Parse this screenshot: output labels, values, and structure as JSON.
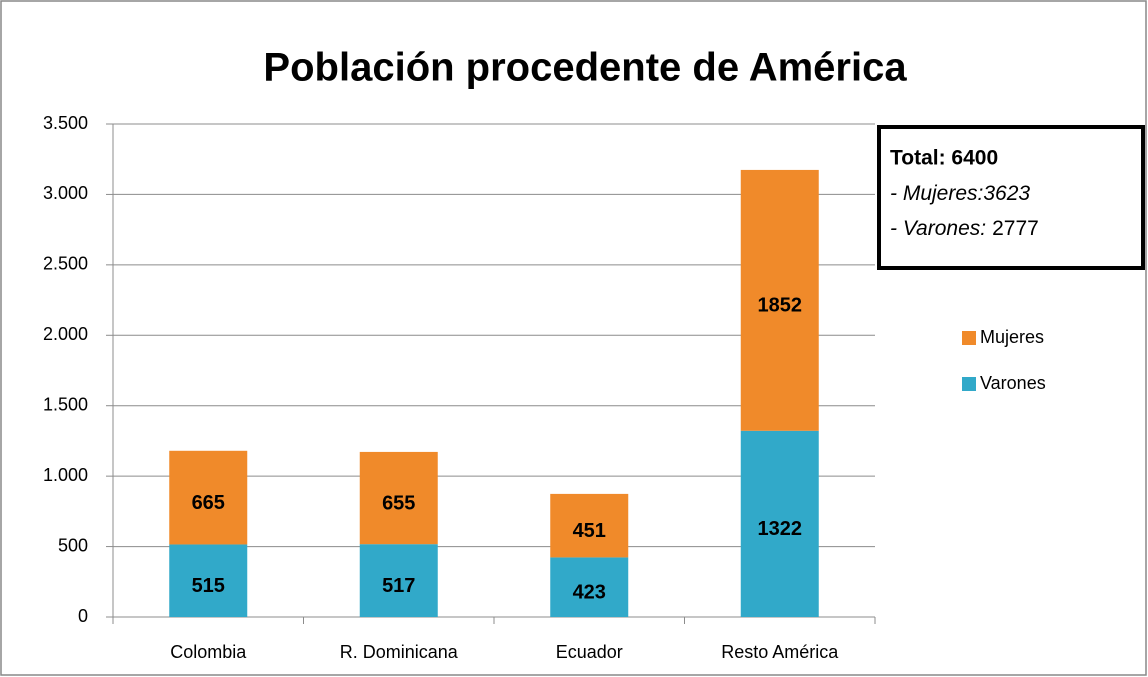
{
  "chart_data": {
    "type": "stacked_bar",
    "title": "Población procedente de América",
    "categories": [
      "Colombia",
      "R. Dominicana",
      "Ecuador",
      "Resto América"
    ],
    "series": [
      {
        "name": "Varones",
        "color": "#31a9c9",
        "values": [
          515,
          517,
          423,
          1322
        ]
      },
      {
        "name": "Mujeres",
        "color": "#f08a2a",
        "values": [
          665,
          655,
          451,
          1852
        ]
      }
    ],
    "ylim": [
      0,
      3500
    ],
    "yticks": [
      0,
      500,
      {
        "value": 1000,
        "label": "1.000"
      },
      {
        "value": 1500,
        "label": "1.500"
      },
      {
        "value": 2000,
        "label": "2.000"
      },
      {
        "value": 2500,
        "label": "2.500"
      },
      {
        "value": 3000,
        "label": "3.000"
      },
      {
        "value": 3500,
        "label": "3.500"
      }
    ],
    "grid": true,
    "legend": "right",
    "annotation": {
      "title": "Total: 6400",
      "lines": [
        {
          "italic": "- Mujeres:3623"
        },
        {
          "italic": "- Varones:",
          "regular": "2777"
        }
      ]
    }
  }
}
